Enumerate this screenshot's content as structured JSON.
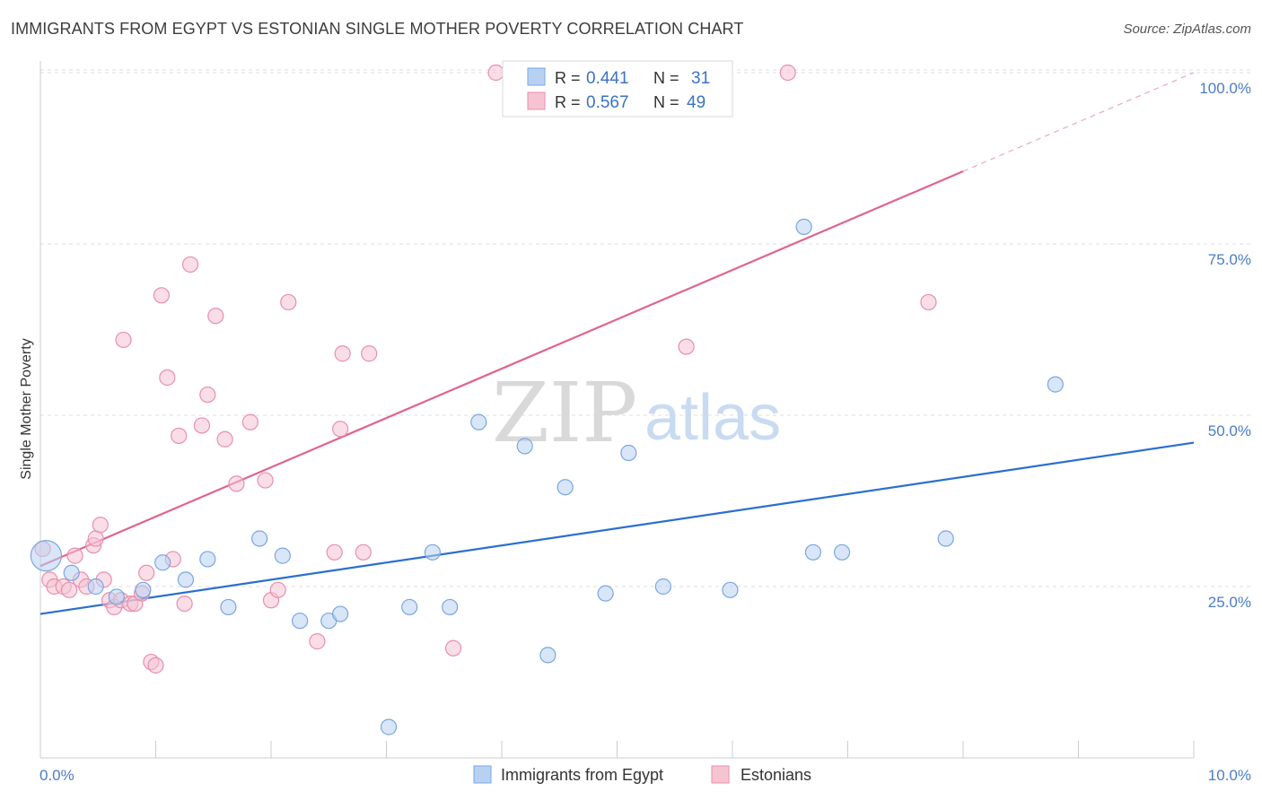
{
  "title": "IMMIGRANTS FROM EGYPT VS ESTONIAN SINGLE MOTHER POVERTY CORRELATION CHART",
  "source": "Source: ZipAtlas.com",
  "watermark": {
    "part1": "ZIP",
    "part2": "atlas"
  },
  "colors": {
    "blue_fill": "#b8d1f3",
    "blue_stroke": "#7aa6e0",
    "blue_line": "#2a6fd0",
    "pink_fill": "#f6c3d3",
    "pink_stroke": "#e88fab",
    "pink_line": "#e0648c",
    "grid": "#dddddd",
    "axis_text": "#4a7cc7"
  },
  "legend": {
    "rows": [
      {
        "r_label": "R =",
        "r_value": "0.441",
        "n_label": "N =",
        "n_value": "31"
      },
      {
        "r_label": "R =",
        "r_value": "0.567",
        "n_label": "N =",
        "n_value": "49"
      }
    ]
  },
  "chart_data": {
    "type": "scatter",
    "title": "IMMIGRANTS FROM EGYPT VS ESTONIAN SINGLE MOTHER POVERTY CORRELATION CHART",
    "xlabel": "",
    "ylabel": "Single Mother Poverty",
    "xlim": [
      0,
      10
    ],
    "ylim": [
      0,
      102
    ],
    "x_tick_labels": [
      "0.0%",
      "10.0%"
    ],
    "y_ticks": [
      25,
      50,
      75,
      100
    ],
    "y_tick_labels": [
      "25.0%",
      "50.0%",
      "75.0%",
      "100.0%"
    ],
    "grid": true,
    "legend_position": "bottom-center",
    "series": [
      {
        "name": "Immigrants from Egypt",
        "R": 0.441,
        "N": 31,
        "trend": {
          "x": [
            0,
            10
          ],
          "y": [
            21.0,
            46.0
          ],
          "dashed_from": null
        },
        "points": [
          {
            "x": 0.05,
            "y": 29.5,
            "big": true
          },
          {
            "x": 0.27,
            "y": 27.0
          },
          {
            "x": 0.48,
            "y": 25.0
          },
          {
            "x": 0.66,
            "y": 23.5
          },
          {
            "x": 0.89,
            "y": 24.5
          },
          {
            "x": 1.06,
            "y": 28.5
          },
          {
            "x": 1.26,
            "y": 26.0
          },
          {
            "x": 1.45,
            "y": 29.0
          },
          {
            "x": 1.63,
            "y": 22.0
          },
          {
            "x": 1.9,
            "y": 32.0
          },
          {
            "x": 2.1,
            "y": 29.5
          },
          {
            "x": 2.25,
            "y": 20.0
          },
          {
            "x": 2.5,
            "y": 20.0
          },
          {
            "x": 2.6,
            "y": 21.0
          },
          {
            "x": 3.2,
            "y": 22.0
          },
          {
            "x": 3.4,
            "y": 30.0
          },
          {
            "x": 3.55,
            "y": 22.0
          },
          {
            "x": 3.8,
            "y": 49.0
          },
          {
            "x": 4.2,
            "y": 45.5
          },
          {
            "x": 4.4,
            "y": 15.0
          },
          {
            "x": 4.55,
            "y": 39.5
          },
          {
            "x": 4.9,
            "y": 24.0
          },
          {
            "x": 5.1,
            "y": 44.5
          },
          {
            "x": 5.4,
            "y": 25.0
          },
          {
            "x": 5.98,
            "y": 24.5
          },
          {
            "x": 6.62,
            "y": 77.5
          },
          {
            "x": 6.7,
            "y": 30.0
          },
          {
            "x": 6.95,
            "y": 30.0
          },
          {
            "x": 7.85,
            "y": 32.0
          },
          {
            "x": 8.8,
            "y": 54.5
          },
          {
            "x": 3.02,
            "y": 4.5
          }
        ]
      },
      {
        "name": "Estonians",
        "R": 0.567,
        "N": 49,
        "trend": {
          "x": [
            0,
            10
          ],
          "y": [
            28.0,
            100.0
          ],
          "dashed_from": 8.0
        },
        "points": [
          {
            "x": 0.02,
            "y": 30.5
          },
          {
            "x": 0.08,
            "y": 26.0
          },
          {
            "x": 0.12,
            "y": 25.0
          },
          {
            "x": 0.2,
            "y": 25.0
          },
          {
            "x": 0.25,
            "y": 24.5
          },
          {
            "x": 0.3,
            "y": 29.5
          },
          {
            "x": 0.35,
            "y": 26.0
          },
          {
            "x": 0.4,
            "y": 25.0
          },
          {
            "x": 0.46,
            "y": 31.0
          },
          {
            "x": 0.48,
            "y": 32.0
          },
          {
            "x": 0.52,
            "y": 34.0
          },
          {
            "x": 0.55,
            "y": 26.0
          },
          {
            "x": 0.6,
            "y": 23.0
          },
          {
            "x": 0.64,
            "y": 22.0
          },
          {
            "x": 0.7,
            "y": 23.0
          },
          {
            "x": 0.72,
            "y": 61.0
          },
          {
            "x": 0.78,
            "y": 22.5
          },
          {
            "x": 0.82,
            "y": 22.5
          },
          {
            "x": 0.88,
            "y": 24.0
          },
          {
            "x": 0.92,
            "y": 27.0
          },
          {
            "x": 0.96,
            "y": 14.0
          },
          {
            "x": 1.0,
            "y": 13.5
          },
          {
            "x": 1.05,
            "y": 67.5
          },
          {
            "x": 1.1,
            "y": 55.5
          },
          {
            "x": 1.15,
            "y": 29.0
          },
          {
            "x": 1.2,
            "y": 47.0
          },
          {
            "x": 1.25,
            "y": 22.5
          },
          {
            "x": 1.3,
            "y": 72.0
          },
          {
            "x": 1.4,
            "y": 48.5
          },
          {
            "x": 1.45,
            "y": 53.0
          },
          {
            "x": 1.52,
            "y": 64.5
          },
          {
            "x": 1.6,
            "y": 46.5
          },
          {
            "x": 1.7,
            "y": 40.0
          },
          {
            "x": 1.82,
            "y": 49.0
          },
          {
            "x": 1.95,
            "y": 40.5
          },
          {
            "x": 2.0,
            "y": 23.0
          },
          {
            "x": 2.06,
            "y": 24.5
          },
          {
            "x": 2.15,
            "y": 66.5
          },
          {
            "x": 2.4,
            "y": 17.0
          },
          {
            "x": 2.55,
            "y": 30.0
          },
          {
            "x": 2.6,
            "y": 48.0
          },
          {
            "x": 2.62,
            "y": 59.0
          },
          {
            "x": 2.8,
            "y": 30.0
          },
          {
            "x": 2.85,
            "y": 59.0
          },
          {
            "x": 3.58,
            "y": 16.0
          },
          {
            "x": 3.95,
            "y": 100.0
          },
          {
            "x": 5.6,
            "y": 60.0
          },
          {
            "x": 6.48,
            "y": 100.0
          },
          {
            "x": 7.7,
            "y": 66.5
          }
        ]
      }
    ]
  }
}
